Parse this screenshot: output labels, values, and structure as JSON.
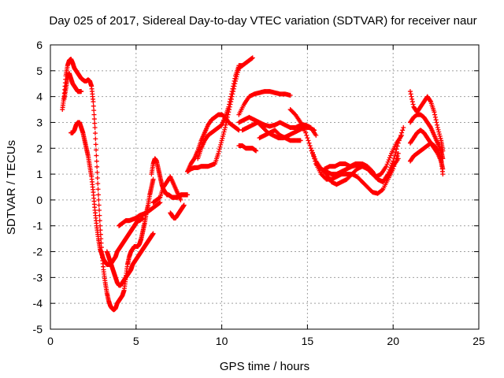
{
  "chart_data": {
    "type": "scatter",
    "title": "Day 025 of 2017, Sidereal Day-to-day VTEC variation (SDTVAR) for receiver naur",
    "xlabel": "GPS time / hours",
    "ylabel": "SDTVAR / TECUs",
    "xlim": [
      0,
      25
    ],
    "ylim": [
      -5,
      6
    ],
    "xticks": [
      0,
      5,
      10,
      15,
      20,
      25
    ],
    "yticks": [
      -5,
      -4,
      -3,
      -2,
      -1,
      0,
      1,
      2,
      3,
      4,
      5,
      6
    ],
    "grid": true,
    "marker": "plus",
    "color": "#ff0000",
    "series": [
      {
        "x": [
          0.7,
          0.8,
          0.9,
          1.0,
          1.1,
          1.2,
          1.3,
          1.4,
          1.5,
          1.6,
          1.7,
          1.8,
          1.9,
          2.0,
          2.1,
          2.2,
          2.3,
          2.4,
          2.5,
          2.6,
          2.7,
          2.8,
          2.9,
          3.0,
          3.1,
          3.2,
          3.3,
          3.4,
          3.5,
          3.6,
          3.7,
          3.8,
          3.9,
          4.0,
          4.1,
          4.2,
          4.3,
          4.4,
          4.5,
          4.6,
          4.7,
          4.8,
          4.9,
          5.0,
          5.1,
          5.2,
          5.3,
          5.4,
          5.5,
          5.6,
          5.7,
          5.8,
          5.9,
          6.0
        ],
        "y": [
          3.5,
          4.0,
          4.8,
          5.2,
          5.4,
          5.45,
          5.3,
          5.1,
          5.0,
          4.9,
          4.8,
          4.7,
          4.65,
          4.6,
          4.6,
          4.65,
          4.6,
          4.4,
          3.8,
          2.8,
          1.5,
          0.2,
          -1.0,
          -2.0,
          -2.7,
          -3.2,
          -3.6,
          -3.9,
          -4.1,
          -4.2,
          -4.25,
          -4.2,
          -4.0,
          -3.9,
          -3.8,
          -3.7,
          -3.5,
          -3.0,
          -2.5,
          -2.2,
          -2.0,
          -1.9,
          -1.8,
          -1.8,
          -1.8,
          -1.7,
          -1.5,
          -1.2,
          -0.9,
          -0.5,
          -0.2,
          0.2,
          0.5,
          0.8
        ]
      },
      {
        "x": [
          0.8,
          0.9,
          1.0,
          1.1,
          1.2,
          1.3,
          1.4,
          1.5,
          1.6,
          1.7,
          1.8
        ],
        "y": [
          3.9,
          4.3,
          4.7,
          4.9,
          4.7,
          4.5,
          4.4,
          4.3,
          4.2,
          4.2,
          4.2
        ]
      },
      {
        "x": [
          1.2,
          1.3,
          1.4,
          1.5,
          1.6,
          1.7,
          1.8,
          1.9,
          2.0,
          2.1,
          2.2,
          2.3,
          2.4,
          2.5,
          2.6,
          2.7,
          2.8,
          2.9,
          3.0,
          3.1,
          3.2,
          3.3,
          3.4,
          3.5,
          3.6,
          3.7,
          3.8,
          3.9,
          4.0,
          4.1,
          4.2,
          4.3,
          4.4,
          4.5,
          4.6,
          4.7,
          4.8,
          4.9,
          5.0,
          5.1,
          5.2,
          5.3,
          5.4
        ],
        "y": [
          2.6,
          2.6,
          2.7,
          2.9,
          3.0,
          3.0,
          2.8,
          2.6,
          2.3,
          2.0,
          1.7,
          1.3,
          0.9,
          0.3,
          -0.4,
          -1.0,
          -1.5,
          -1.9,
          -2.1,
          -2.3,
          -2.4,
          -2.5,
          -2.5,
          -2.5,
          -2.4,
          -2.3,
          -2.2,
          -2.0,
          -1.9,
          -1.8,
          -1.7,
          -1.6,
          -1.5,
          -1.4,
          -1.3,
          -1.2,
          -1.1,
          -1.0,
          -0.9,
          -0.8,
          -0.8,
          -0.75,
          -0.7
        ]
      },
      {
        "x": [
          3.3,
          3.4,
          3.5,
          3.6,
          3.7,
          3.8,
          3.9,
          4.0,
          4.1,
          4.2,
          4.3,
          4.4,
          4.5,
          4.6,
          4.7,
          4.8,
          4.9,
          5.0,
          5.1,
          5.2,
          5.3,
          5.4,
          5.5,
          5.6,
          5.7,
          5.8,
          5.9,
          6.0
        ],
        "y": [
          -2.0,
          -2.2,
          -2.4,
          -2.6,
          -2.8,
          -3.0,
          -3.2,
          -3.3,
          -3.3,
          -3.2,
          -3.1,
          -3.0,
          -2.9,
          -2.8,
          -2.7,
          -2.5,
          -2.4,
          -2.3,
          -2.2,
          -2.1,
          -2.0,
          -1.9,
          -1.8,
          -1.7,
          -1.6,
          -1.5,
          -1.4,
          -1.3
        ]
      },
      {
        "x": [
          4.0,
          4.2,
          4.4,
          4.6,
          4.8,
          5.0,
          5.2,
          5.4,
          5.6,
          5.8,
          6.0,
          6.2,
          6.4
        ],
        "y": [
          -1.0,
          -0.9,
          -0.8,
          -0.8,
          -0.75,
          -0.7,
          -0.6,
          -0.55,
          -0.5,
          -0.4,
          -0.3,
          -0.2,
          -0.1
        ]
      },
      {
        "x": [
          5.9,
          6.0,
          6.1,
          6.2,
          6.3,
          6.4,
          6.5,
          6.6,
          6.7,
          6.8,
          6.9,
          7.0,
          7.1,
          7.2,
          7.3,
          7.4,
          7.5,
          7.6,
          7.7,
          7.8,
          7.9,
          8.0
        ],
        "y": [
          1.0,
          1.4,
          1.6,
          1.5,
          1.2,
          0.9,
          0.6,
          0.4,
          0.3,
          0.2,
          0.2,
          0.15,
          0.1,
          0.1,
          0.1,
          0.1,
          0.15,
          0.2,
          0.2,
          0.2,
          0.2,
          0.2
        ]
      },
      {
        "x": [
          6.0,
          6.2,
          6.4,
          6.6,
          6.8,
          7.0,
          7.2,
          7.4,
          7.6
        ],
        "y": [
          -0.1,
          0.0,
          0.1,
          0.5,
          0.7,
          0.9,
          0.6,
          0.3,
          0.0
        ]
      },
      {
        "x": [
          7.0,
          7.1,
          7.2,
          7.3,
          7.4,
          7.5,
          7.6,
          7.7,
          7.8
        ],
        "y": [
          -0.5,
          -0.6,
          -0.7,
          -0.7,
          -0.6,
          -0.5,
          -0.4,
          -0.3,
          -0.2
        ]
      },
      {
        "x": [
          8.0,
          8.2,
          8.4,
          8.6,
          8.8,
          9.0,
          9.2,
          9.4,
          9.6,
          9.8,
          10.0,
          10.2,
          10.4,
          10.6,
          10.8,
          11.0,
          11.2,
          11.4,
          11.6,
          11.8
        ],
        "y": [
          1.1,
          1.2,
          1.25,
          1.25,
          1.3,
          1.3,
          1.3,
          1.35,
          1.4,
          1.8,
          2.3,
          2.8,
          3.4,
          4.0,
          4.6,
          5.1,
          5.2,
          5.3,
          5.4,
          5.5
        ]
      },
      {
        "x": [
          8.0,
          8.2,
          8.4,
          8.6,
          8.8,
          9.0,
          9.2,
          9.4,
          9.6,
          9.8,
          10.0,
          10.2,
          10.4,
          10.6,
          10.8,
          11.0
        ],
        "y": [
          1.1,
          1.4,
          1.6,
          1.9,
          2.3,
          2.6,
          2.9,
          3.1,
          3.2,
          3.3,
          3.3,
          3.2,
          3.0,
          2.9,
          2.8,
          2.7
        ]
      },
      {
        "x": [
          8.6,
          8.8,
          9.0,
          9.2,
          9.4,
          9.6,
          9.8,
          10.0,
          10.2,
          10.4,
          10.6,
          10.8,
          11.0,
          11.2
        ],
        "y": [
          1.6,
          2.0,
          2.3,
          2.5,
          2.6,
          2.7,
          2.8,
          2.9,
          3.2,
          3.6,
          4.2,
          4.8,
          5.2,
          5.2
        ]
      },
      {
        "x": [
          11.0,
          11.2,
          11.4,
          11.6,
          11.8,
          12.0
        ],
        "y": [
          2.1,
          2.1,
          2.0,
          2.0,
          2.0,
          1.9
        ]
      },
      {
        "x": [
          11.0,
          11.3,
          11.6,
          11.9,
          12.2,
          12.5,
          12.8,
          13.1,
          13.4,
          13.7,
          14.0
        ],
        "y": [
          3.3,
          3.7,
          4.0,
          4.1,
          4.15,
          4.2,
          4.2,
          4.15,
          4.1,
          4.1,
          4.05
        ]
      },
      {
        "x": [
          11.0,
          11.3,
          11.6,
          11.9,
          12.2,
          12.5,
          12.8,
          13.1,
          13.4,
          13.7,
          14.0,
          14.3,
          14.6,
          14.9,
          15.2,
          15.5
        ],
        "y": [
          3.0,
          3.1,
          3.2,
          3.1,
          3.0,
          2.9,
          2.85,
          2.9,
          3.0,
          2.9,
          2.8,
          2.8,
          2.9,
          2.9,
          2.8,
          2.5
        ]
      },
      {
        "x": [
          11.2,
          11.5,
          11.8,
          12.1,
          12.4,
          12.7,
          13.0,
          13.3,
          13.6,
          13.9,
          14.2,
          14.5,
          14.8,
          15.1,
          15.4
        ],
        "y": [
          2.7,
          2.8,
          2.9,
          3.0,
          2.8,
          2.6,
          2.5,
          2.4,
          2.4,
          2.5,
          2.6,
          2.7,
          2.8,
          2.8,
          2.7
        ]
      },
      {
        "x": [
          12.2,
          12.5,
          12.8,
          13.1,
          13.4,
          13.7,
          14.0,
          14.3,
          14.6
        ],
        "y": [
          2.4,
          2.5,
          2.6,
          2.7,
          2.5,
          2.4,
          2.3,
          2.3,
          2.3
        ]
      },
      {
        "x": [
          14.0,
          14.3,
          14.6,
          14.9,
          15.2,
          15.5,
          15.8,
          16.1,
          16.4,
          16.7,
          17.0,
          17.3,
          17.6,
          17.9,
          18.2,
          18.5,
          18.8,
          19.1,
          19.4,
          19.7,
          20.0,
          20.3,
          20.6
        ],
        "y": [
          3.5,
          3.3,
          3.0,
          2.6,
          2.0,
          1.5,
          1.2,
          1.1,
          1.0,
          1.0,
          1.1,
          1.2,
          1.3,
          1.35,
          1.4,
          1.3,
          1.1,
          0.8,
          0.7,
          1.0,
          1.5,
          2.2,
          2.8
        ]
      },
      {
        "x": [
          15.2,
          15.5,
          15.8,
          16.1,
          16.4,
          16.7,
          17.0,
          17.3,
          17.6,
          17.9,
          18.2,
          18.5,
          18.8,
          19.1,
          19.4,
          19.7,
          20.0,
          20.3
        ],
        "y": [
          2.0,
          1.4,
          1.0,
          0.8,
          0.8,
          0.9,
          1.0,
          1.0,
          1.0,
          0.9,
          0.7,
          0.5,
          0.3,
          0.25,
          0.4,
          0.8,
          1.2,
          1.8
        ]
      },
      {
        "x": [
          15.5,
          15.8,
          16.1,
          16.4,
          16.7,
          17.0,
          17.3,
          17.6,
          17.9,
          18.2,
          18.5,
          18.8,
          19.1,
          19.4,
          19.7,
          20.0,
          20.3
        ],
        "y": [
          1.4,
          1.2,
          1.0,
          0.7,
          0.6,
          0.7,
          0.8,
          1.0,
          1.2,
          1.3,
          1.2,
          1.0,
          0.8,
          0.7,
          0.9,
          1.3,
          1.6
        ]
      },
      {
        "x": [
          16.0,
          16.3,
          16.6,
          16.9,
          17.2,
          17.5,
          17.8,
          18.1,
          18.4,
          18.7,
          19.0,
          19.3,
          19.6,
          19.9,
          20.2,
          20.5
        ],
        "y": [
          1.2,
          1.3,
          1.3,
          1.4,
          1.4,
          1.3,
          1.4,
          1.4,
          1.3,
          1.1,
          0.9,
          1.0,
          1.3,
          1.8,
          2.2,
          2.5
        ]
      },
      {
        "x": [
          21.0,
          21.2,
          21.4,
          21.6,
          21.8,
          22.0,
          22.2,
          22.4,
          22.6,
          22.8,
          22.9
        ],
        "y": [
          4.2,
          3.6,
          3.4,
          3.6,
          3.8,
          4.0,
          3.8,
          3.4,
          2.8,
          2.3,
          1.9
        ]
      },
      {
        "x": [
          21.0,
          21.2,
          21.4,
          21.6,
          21.8,
          22.0,
          22.2,
          22.4,
          22.6,
          22.8,
          22.9
        ],
        "y": [
          3.0,
          3.2,
          3.3,
          3.3,
          3.2,
          3.0,
          2.8,
          2.5,
          2.2,
          1.9,
          1.6
        ]
      },
      {
        "x": [
          21.0,
          21.2,
          21.4,
          21.6,
          21.8,
          22.0,
          22.2,
          22.4,
          22.6,
          22.8,
          22.9
        ],
        "y": [
          2.2,
          2.4,
          2.6,
          2.7,
          2.6,
          2.4,
          2.2,
          2.0,
          1.8,
          1.5,
          1.2
        ]
      },
      {
        "x": [
          21.0,
          21.2,
          21.4,
          21.6,
          21.8,
          22.0,
          22.2,
          22.4,
          22.6,
          22.8,
          22.9
        ],
        "y": [
          1.5,
          1.7,
          1.8,
          1.9,
          2.0,
          2.1,
          2.2,
          2.1,
          1.9,
          1.6,
          1.0
        ]
      }
    ]
  }
}
